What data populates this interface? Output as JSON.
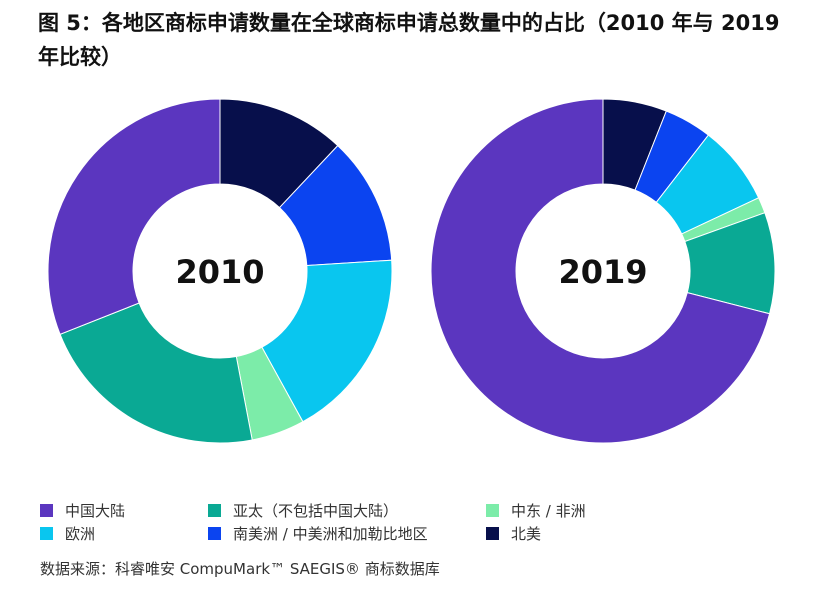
{
  "title": "图 5：各地区商标申请数量在全球商标申请总数量中的占比（2010 年与 2019 年比较）",
  "source": "数据来源：科睿唯安 CompuMark™ SAEGIS® 商标数据库",
  "colors": {
    "china": "#5b36bf",
    "apac": "#0aa994",
    "mideast_africa": "#7ceca9",
    "europe": "#09c6ef",
    "latam": "#0b44f0",
    "north_america": "#070f4b"
  },
  "chart_data": [
    {
      "type": "pie",
      "center_label": "2010",
      "slices": [
        {
          "label": "北美",
          "value": 12
        },
        {
          "label": "南美洲 / 中美洲和加勒比地区",
          "value": 12
        },
        {
          "label": "欧洲",
          "value": 18
        },
        {
          "label": "中东 / 非洲",
          "value": 5
        },
        {
          "label": "亚太（不包括中国大陆）",
          "value": 22
        },
        {
          "label": "中国大陆",
          "value": 31
        }
      ]
    },
    {
      "type": "pie",
      "center_label": "2019",
      "slices": [
        {
          "label": "北美",
          "value": 6
        },
        {
          "label": "南美洲 / 中美洲和加勒比地区",
          "value": 4.5
        },
        {
          "label": "欧洲",
          "value": 7.5
        },
        {
          "label": "中东 / 非洲",
          "value": 1.5
        },
        {
          "label": "亚太（不包括中国大陆）",
          "value": 9.5
        },
        {
          "label": "中国大陆",
          "value": 71
        }
      ]
    }
  ],
  "legend": [
    {
      "label": "中国大陆",
      "color": "#5b36bf"
    },
    {
      "label": "亚太（不包括中国大陆）",
      "color": "#0aa994"
    },
    {
      "label": "中东 / 非洲",
      "color": "#7ceca9"
    },
    {
      "label": "欧洲",
      "color": "#09c6ef"
    },
    {
      "label": "南美洲 / 中美洲和加勒比地区",
      "color": "#0b44f0"
    },
    {
      "label": "北美",
      "color": "#070f4b"
    }
  ]
}
